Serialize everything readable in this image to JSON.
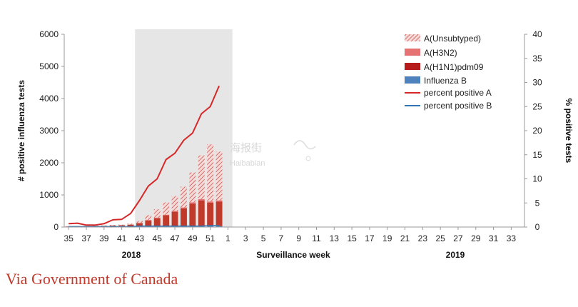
{
  "chart_data": {
    "type": "bar",
    "title": "",
    "xlabel": "Surveillance  week",
    "ylabel": "# positive influenza tests",
    "y2label": "% positive tests",
    "ylim": [
      0,
      6000
    ],
    "y2lim": [
      0,
      40
    ],
    "yticks": [
      "0",
      "1000",
      "2000",
      "3000",
      "4000",
      "5000",
      "6000"
    ],
    "y2ticks": [
      "0",
      "5",
      "10",
      "15",
      "20",
      "25",
      "30",
      "35",
      "40"
    ],
    "weeks": [
      "35",
      "36",
      "37",
      "38",
      "39",
      "40",
      "41",
      "42",
      "43",
      "44",
      "45",
      "46",
      "47",
      "48",
      "49",
      "50",
      "51",
      "52",
      "1",
      "2",
      "3",
      "4",
      "5",
      "6",
      "7",
      "8",
      "9",
      "10",
      "11",
      "12",
      "13",
      "14",
      "15",
      "16",
      "17",
      "18",
      "19",
      "20",
      "21",
      "22",
      "23",
      "24",
      "25",
      "26",
      "27",
      "28",
      "29",
      "30",
      "31",
      "32",
      "33",
      "34"
    ],
    "tick_labels": [
      "35",
      "37",
      "39",
      "41",
      "43",
      "45",
      "47",
      "49",
      "51",
      "1",
      "3",
      "5",
      "7",
      "9",
      "11",
      "13",
      "15",
      "17",
      "19",
      "21",
      "23",
      "25",
      "27",
      "29",
      "31",
      "33"
    ],
    "year_labels": [
      "2018",
      "2019"
    ],
    "highlight_weeks": [
      "43",
      "1"
    ],
    "series": [
      {
        "name": "Influenza B",
        "kind": "bar",
        "color": "#4f81bd",
        "values": [
          10,
          10,
          10,
          10,
          10,
          15,
          15,
          15,
          20,
          20,
          25,
          25,
          25,
          30,
          30,
          30,
          35,
          30
        ]
      },
      {
        "name": "A(H1N1)pdm09",
        "kind": "bar",
        "color": "#c0392b",
        "values": [
          10,
          10,
          15,
          20,
          30,
          30,
          40,
          60,
          100,
          180,
          250,
          340,
          450,
          550,
          700,
          800,
          720,
          760
        ]
      },
      {
        "name": "A(H3N2)",
        "kind": "bar",
        "color": "#e57373",
        "values": [
          0,
          0,
          0,
          0,
          0,
          0,
          0,
          0,
          10,
          20,
          20,
          20,
          30,
          30,
          40,
          40,
          40,
          40
        ]
      },
      {
        "name": "A(Unsubtyped)",
        "kind": "bar",
        "color": "#c0392b",
        "values": [
          10,
          10,
          10,
          10,
          10,
          20,
          20,
          30,
          60,
          150,
          260,
          380,
          460,
          650,
          930,
          1360,
          1780,
          1520
        ]
      },
      {
        "name": "percent positive A",
        "kind": "line",
        "color": "#d62728",
        "values": [
          0.7,
          0.8,
          0.4,
          0.4,
          0.7,
          1.5,
          1.6,
          2.8,
          5.5,
          8.5,
          10.0,
          14.0,
          15.3,
          18.0,
          19.5,
          23.5,
          25.0,
          29.3
        ]
      },
      {
        "name": "percent positive B",
        "kind": "line",
        "color": "#2e75b6",
        "values": [
          0.1,
          0.1,
          0.1,
          0.1,
          0.1,
          0.1,
          0.1,
          0.1,
          0.2,
          0.2,
          0.2,
          0.2,
          0.2,
          0.2,
          0.2,
          0.2,
          0.3,
          0.3
        ]
      }
    ],
    "legend": [
      "A(Unsubtyped)",
      "A(H3N2)",
      "A(H1N1)pdm09",
      "Influenza B",
      "percent positive A",
      "percent positive B"
    ],
    "legend_position": "top-right"
  },
  "watermark": {
    "line1": "海报街",
    "line2": "Haibabian"
  },
  "caption": "Via Government of Canada",
  "colors": {
    "shade": "#e6e6e6",
    "axis": "#9a9a9a",
    "caption": "#c0392b"
  }
}
